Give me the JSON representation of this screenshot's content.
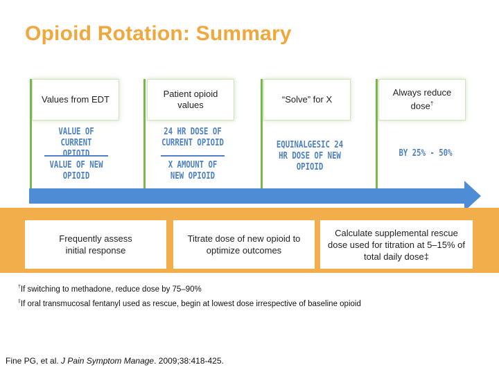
{
  "title": "Opioid Rotation: Summary",
  "steps": [
    {
      "label": "Values from EDT",
      "sup": ""
    },
    {
      "label": "Patient opioid values",
      "sup": ""
    },
    {
      "label": "“Solve” for X",
      "sup": ""
    },
    {
      "label": "Always reduce dose",
      "sup": "†"
    }
  ],
  "handwriting": {
    "fraction1_top": "VALUE OF CURRENT OPIOID",
    "fraction1_bottom": "VALUE OF NEW OPIOID",
    "fraction2_top": "24 HR DOSE OF CURRENT OPIOID",
    "fraction2_bottom": "X AMOUNT OF NEW OPIOID",
    "result": "EQUINALGESIC 24 HR DOSE OF NEW OPIOID",
    "reduction": "BY 25% - 50%"
  },
  "bottom_steps": [
    "Frequently assess initial response",
    "Titrate dose of new opioid to optimize outcomes",
    "Calculate supplemental rescue dose used for titration at 5–15% of total daily dose‡"
  ],
  "footnotes": [
    {
      "mark": "†",
      "text": "If switching to methadone, reduce dose by 75–90%"
    },
    {
      "mark": "‡",
      "text": "If oral transmucosal fentanyl used as rescue, begin at lowest dose irrespective of baseline opioid"
    }
  ],
  "citation": {
    "authors": "Fine PG, et al.",
    "journal": "J Pain Symptom Manage",
    "details": ". 2009;38:418-425."
  },
  "colors": {
    "title": "#f0a83c",
    "stem": "#79b94a",
    "arrow": "#4e8dd6",
    "band": "#f2ae4a",
    "handwriting": "#4d80c4"
  }
}
